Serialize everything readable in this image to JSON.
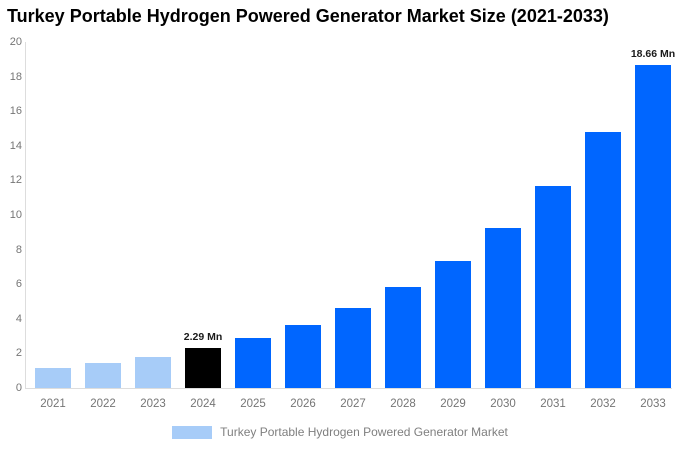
{
  "title": "Turkey Portable Hydrogen Powered Generator Market Size (2021-2033)",
  "legend": {
    "label": "Turkey Portable Hydrogen Powered Generator Market",
    "swatch_color": "#a7ccf8"
  },
  "colors": {
    "light_blue": "#a7ccf8",
    "bright_blue": "#0066ff",
    "black_bar": "#000000",
    "axis_line": "#dddddd",
    "tick_text": "#757575",
    "annotation_text": "#1a1a1a",
    "background": "#ffffff"
  },
  "chart_data": {
    "type": "bar",
    "title": "Turkey Portable Hydrogen Powered Generator Market Size (2021-2033)",
    "categories": [
      "2021",
      "2022",
      "2023",
      "2024",
      "2025",
      "2026",
      "2027",
      "2028",
      "2029",
      "2030",
      "2031",
      "2032",
      "2033"
    ],
    "values": [
      1.14,
      1.44,
      1.81,
      2.29,
      2.89,
      3.65,
      4.61,
      5.82,
      7.34,
      9.27,
      11.7,
      14.78,
      18.66
    ],
    "bar_colors": [
      "#a7ccf8",
      "#a7ccf8",
      "#a7ccf8",
      "#000000",
      "#0066ff",
      "#0066ff",
      "#0066ff",
      "#0066ff",
      "#0066ff",
      "#0066ff",
      "#0066ff",
      "#0066ff",
      "#0066ff"
    ],
    "annotations": [
      {
        "category": "2024",
        "text": "2.29 Mn"
      },
      {
        "category": "2033",
        "text": "18.66 Mn"
      }
    ],
    "xlabel": "",
    "ylabel": "",
    "ylim": [
      0,
      20
    ],
    "y_ticks": [
      0,
      2,
      4,
      6,
      8,
      10,
      12,
      14,
      16,
      18,
      20
    ],
    "grid": false,
    "legend_position": "bottom",
    "legend_entries": [
      "Turkey Portable Hydrogen Powered Generator Market"
    ],
    "unit": "Mn"
  }
}
